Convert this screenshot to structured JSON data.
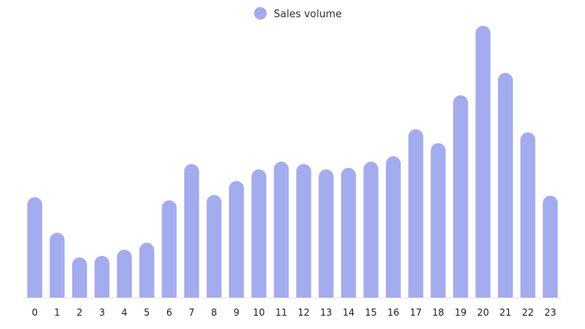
{
  "chart_data": {
    "type": "bar",
    "title": "",
    "xlabel": "",
    "ylabel": "",
    "legend": {
      "position": "top-center",
      "entries": [
        {
          "name": "Sales volume",
          "color": "#a3acee"
        }
      ]
    },
    "grid": false,
    "categories": [
      "0",
      "1",
      "2",
      "3",
      "4",
      "5",
      "6",
      "7",
      "8",
      "9",
      "10",
      "11",
      "12",
      "13",
      "14",
      "15",
      "16",
      "17",
      "18",
      "19",
      "20",
      "21",
      "22",
      "23"
    ],
    "series": [
      {
        "name": "Sales volume",
        "color": "#a3acee",
        "values": [
          130,
          84,
          52,
          54,
          62,
          71,
          126,
          173,
          133,
          151,
          166,
          176,
          173,
          166,
          168,
          176,
          183,
          218,
          200,
          262,
          352,
          291,
          214,
          132
        ]
      }
    ],
    "ylim": [
      0,
      360
    ]
  }
}
